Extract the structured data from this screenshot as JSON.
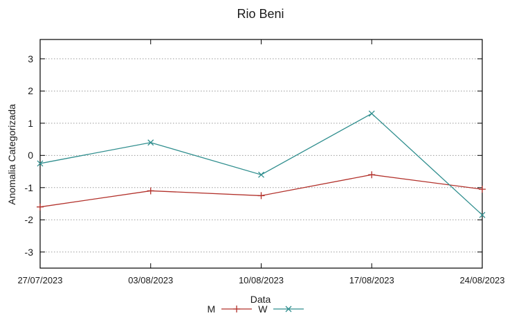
{
  "chart_data": {
    "type": "line",
    "title": "Rio Beni",
    "xlabel": "Data",
    "ylabel": "Anomalia Categorizada",
    "categories": [
      "27/07/2023",
      "03/08/2023",
      "10/08/2023",
      "17/08/2023",
      "24/08/2023"
    ],
    "series": [
      {
        "name": "M",
        "color": "#b2302a",
        "marker": "plus",
        "values": [
          -1.6,
          -1.1,
          -1.25,
          -0.6,
          -1.05
        ]
      },
      {
        "name": "W",
        "color": "#2f8e8e",
        "marker": "x",
        "values": [
          -0.25,
          0.4,
          -0.6,
          1.3,
          -1.85
        ]
      }
    ],
    "yticks": [
      -3,
      -2,
      -1,
      0,
      1,
      2,
      3
    ],
    "ylim": [
      -3.5,
      3.6
    ],
    "grid": "horizontal-dotted",
    "grid_color": "#999999",
    "border_color": "#000000",
    "legend_position": "below"
  }
}
